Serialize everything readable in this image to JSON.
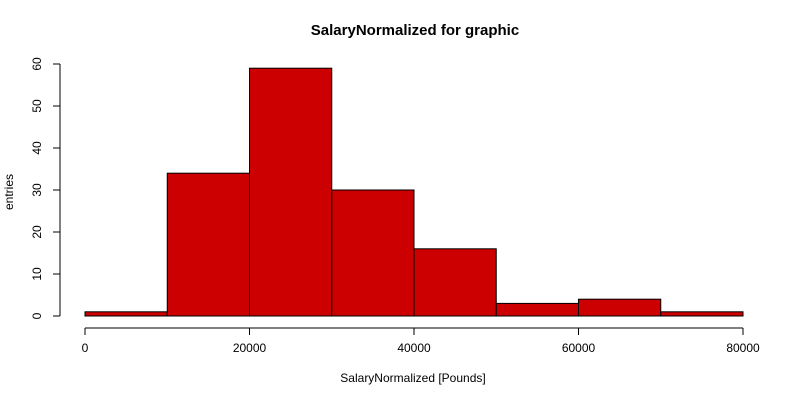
{
  "chart_data": {
    "type": "bar",
    "title": "SalaryNormalized for graphic",
    "xlabel": "SalaryNormalized [Pounds]",
    "ylabel": "entries",
    "bin_edges": [
      0,
      10000,
      20000,
      30000,
      40000,
      50000,
      60000,
      70000,
      80000
    ],
    "values": [
      1,
      34,
      59,
      30,
      16,
      3,
      4,
      1
    ],
    "xlim": [
      0,
      80000
    ],
    "ylim": [
      0,
      60
    ],
    "x_ticks": [
      0,
      20000,
      40000,
      60000,
      80000
    ],
    "y_ticks": [
      0,
      10,
      20,
      30,
      40,
      50,
      60
    ],
    "bar_color": "#cc0000",
    "grid": false
  }
}
